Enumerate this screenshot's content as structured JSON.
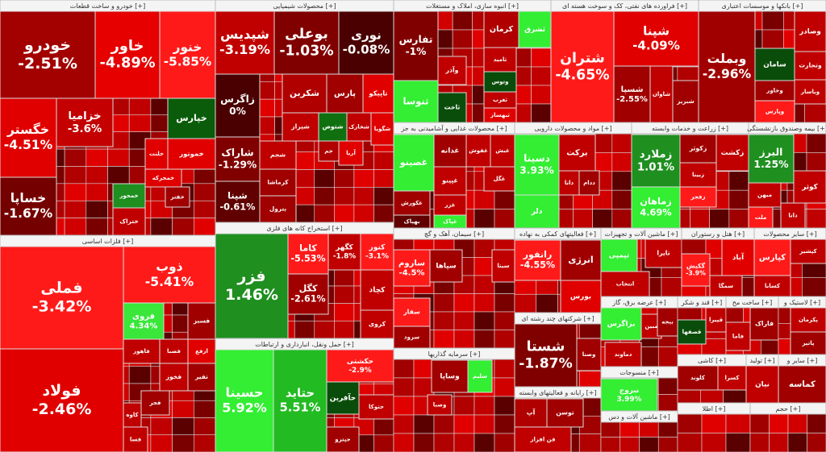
{
  "sectors": [
    {
      "title": "خودرو و ساخت قطعات [+]",
      "tiles": [
        {
          "name": "خودرو",
          "change": "-2.51%"
        },
        {
          "name": "خاور",
          "change": "-4.89%"
        },
        {
          "name": "خنور",
          "change": "-5.85%"
        },
        {
          "name": "خگستر",
          "change": "-4.51%"
        },
        {
          "name": "خساپا",
          "change": "-1.67%"
        },
        {
          "name": "خزامیا",
          "change": "-3.6%"
        },
        {
          "name": "خپارس"
        },
        {
          "name": "خموتور"
        },
        {
          "name": "خلنت"
        },
        {
          "name": "خمحرکه"
        },
        {
          "name": "خمحور"
        },
        {
          "name": "ختراک"
        },
        {
          "name": "خفنر"
        }
      ]
    },
    {
      "title": "فلزات اساسی [+]",
      "tiles": [
        {
          "name": "فملی",
          "change": "-3.42%"
        },
        {
          "name": "فولاد",
          "change": "-2.46%"
        },
        {
          "name": "ذوب",
          "change": "-5.41%"
        },
        {
          "name": "فروی",
          "change": "4.34%"
        },
        {
          "name": "فسبز"
        },
        {
          "name": "فاهور"
        },
        {
          "name": "فصبا"
        },
        {
          "name": "ارفع"
        },
        {
          "name": "فخوز"
        },
        {
          "name": "تفیر"
        },
        {
          "name": "فجر"
        },
        {
          "name": "کاوه"
        },
        {
          "name": "فسا"
        }
      ]
    },
    {
      "title": "محصولات شیمیایی [+]",
      "tiles": [
        {
          "name": "شپدیس",
          "change": "-3.19%"
        },
        {
          "name": "بوعلی",
          "change": "-1.03%"
        },
        {
          "name": "نوری",
          "change": "-0.08%"
        },
        {
          "name": "زاگرس",
          "change": "0%"
        },
        {
          "name": "شکربن"
        },
        {
          "name": "پارس"
        },
        {
          "name": "تاپیکو"
        },
        {
          "name": "شیراز"
        },
        {
          "name": "شتوص"
        },
        {
          "name": "شخارک"
        },
        {
          "name": "شگویا"
        },
        {
          "name": "شاراک",
          "change": "-1.29%"
        },
        {
          "name": "شپنا",
          "change": "-0.61%"
        },
        {
          "name": "شجم"
        },
        {
          "name": "کرماشا"
        },
        {
          "name": "بترول"
        },
        {
          "name": "آریا"
        },
        {
          "name": "جم"
        }
      ]
    },
    {
      "title": "استخراج کانه های فلزی [+]",
      "tiles": [
        {
          "name": "فزر",
          "change": "1.46%"
        },
        {
          "name": "کاما",
          "change": "-5.53%"
        },
        {
          "name": "کگهر",
          "change": "-1.8%"
        },
        {
          "name": "کنور",
          "change": "-3.1%"
        },
        {
          "name": "کچاد"
        },
        {
          "name": "کگل",
          "change": "-2.61%"
        },
        {
          "name": "کروی"
        }
      ]
    },
    {
      "title": "حمل ونقل، انبارداری و ارتباطات [+]",
      "tiles": [
        {
          "name": "حسینا",
          "change": "5.92%"
        },
        {
          "name": "حتاید",
          "change": "5.51%"
        },
        {
          "name": "حکشتی",
          "change": "-2.9%"
        },
        {
          "name": "حآفرین"
        },
        {
          "name": "حتوکا"
        },
        {
          "name": "حپترو"
        }
      ]
    },
    {
      "title": "انبوه سازی، املاک و مستغلات [+]",
      "tiles": [
        {
          "name": "تفارس",
          "change": "-1%"
        },
        {
          "name": "کرمان"
        },
        {
          "name": "ثشرق"
        },
        {
          "name": "ثامید"
        },
        {
          "name": "وآذر"
        },
        {
          "name": "ثاخت"
        },
        {
          "name": "وتوس"
        },
        {
          "name": "ثغرب"
        },
        {
          "name": "ثبهساز"
        },
        {
          "name": "ثنوسا"
        }
      ]
    },
    {
      "title": "فراورده های نفتی، کک و سوخت هسته ای [+]",
      "tiles": [
        {
          "name": "شتران",
          "change": "-4.65%"
        },
        {
          "name": "شپنا",
          "change": "-4.09%"
        },
        {
          "name": "شسپا",
          "change": "-2.55%"
        },
        {
          "name": "شاوان"
        },
        {
          "name": "شبریز"
        }
      ]
    },
    {
      "title": "بانکها و موسسات اعتباری [+]",
      "tiles": [
        {
          "name": "وبملت",
          "change": "-2.96%"
        },
        {
          "name": "وصادر"
        },
        {
          "name": "وتجارت"
        },
        {
          "name": "سامان"
        },
        {
          "name": "وخاور"
        },
        {
          "name": "وپارس"
        },
        {
          "name": "ویاسار"
        }
      ]
    },
    {
      "title": "محصولات غذایی و آشامیدنی به جز [+]",
      "tiles": [
        {
          "name": "غصینو"
        },
        {
          "name": "غکورش"
        },
        {
          "name": "بهپاک"
        },
        {
          "name": "غدانه"
        },
        {
          "name": "غفوش"
        },
        {
          "name": "غبش"
        },
        {
          "name": "غپینو"
        },
        {
          "name": "غگل"
        },
        {
          "name": "غزر"
        },
        {
          "name": "غپاک"
        }
      ]
    },
    {
      "title": "مواد و محصولات دارویی [+]",
      "tiles": [
        {
          "name": "دسینا",
          "change": "3.93%"
        },
        {
          "name": "دلر"
        },
        {
          "name": "برکت"
        },
        {
          "name": "دانا"
        },
        {
          "name": "ددام"
        }
      ]
    },
    {
      "title": "زراعت و خدمات وابسته [+]",
      "tiles": [
        {
          "name": "زملارد",
          "change": "1.01%"
        },
        {
          "name": "زماهان",
          "change": "4.69%"
        },
        {
          "name": "زکوثر"
        },
        {
          "name": "زکشت"
        },
        {
          "name": "زبینا"
        },
        {
          "name": "زفجر"
        }
      ]
    },
    {
      "title": "بیمه وصندوق بازنشستگی [+]",
      "tiles": [
        {
          "name": "البرز",
          "change": "1.25%"
        },
        {
          "name": "کوثر"
        },
        {
          "name": "میهن"
        },
        {
          "name": "ملت"
        },
        {
          "name": "دانا"
        }
      ]
    },
    {
      "title": "سیمان، آهک و گچ [+]",
      "tiles": [
        {
          "name": "ساروم",
          "change": "-4.5%"
        },
        {
          "name": "سپاها"
        },
        {
          "name": "سیتا"
        },
        {
          "name": "سفار"
        },
        {
          "name": "سرود"
        }
      ]
    },
    {
      "title": "سرمایه گذاریها [+]",
      "tiles": [
        {
          "name": "سلیم"
        },
        {
          "name": "وساپا"
        },
        {
          "name": "وصبا"
        }
      ]
    },
    {
      "title": "فعالیتهای کمکی به نهاده [+]",
      "tiles": [
        {
          "name": "رانفور",
          "change": "-4.55%"
        },
        {
          "name": "انرژی"
        },
        {
          "name": "بورس"
        }
      ]
    },
    {
      "title": "شرکتهای چند رشته ای [+]",
      "tiles": [
        {
          "name": "شستا",
          "change": "-1.87%"
        },
        {
          "name": "وصنا"
        }
      ]
    },
    {
      "title": "رایانه و فعالیتهای وابسته [+]",
      "tiles": [
        {
          "name": "آپ"
        },
        {
          "name": "توسن"
        },
        {
          "name": "فن افزار"
        }
      ]
    },
    {
      "title": "ماشین آلات و تجهیزات [+]",
      "tiles": [
        {
          "name": "تپمپی"
        },
        {
          "name": "تایرا"
        },
        {
          "name": "انتخاب"
        }
      ]
    },
    {
      "title": "عرضه برق، گاز [+]",
      "tiles": [
        {
          "name": "بزاگرس"
        },
        {
          "name": "مبین"
        },
        {
          "name": "بیجه"
        },
        {
          "name": "دماوند"
        }
      ]
    },
    {
      "title": "منسوجات [+]",
      "tiles": [
        {
          "name": "نبروج",
          "change": "3.99%"
        }
      ]
    },
    {
      "title": "ماشین آلات و دس [+]",
      "tiles": []
    },
    {
      "title": "هتل و رستوران [+]",
      "tiles": [
        {
          "name": "آباد"
        },
        {
          "name": "سمگا"
        },
        {
          "name": "گکیش",
          "change": "-3.9%"
        }
      ]
    },
    {
      "title": "سایر محصولات [+]",
      "tiles": [
        {
          "name": "کپارس"
        },
        {
          "name": "کسابا"
        },
        {
          "name": "کپشیر"
        }
      ]
    },
    {
      "title": "قند و شکر [+]",
      "tiles": [
        {
          "name": "قصفها"
        },
        {
          "name": "قپیرا"
        }
      ]
    },
    {
      "title": "ساخت مح [+]",
      "tiles": [
        {
          "name": "فاراک"
        },
        {
          "name": "فاما"
        }
      ]
    },
    {
      "title": "لاستیک و [+]",
      "tiles": [
        {
          "name": "پکرمان"
        },
        {
          "name": "پاتیر"
        }
      ]
    },
    {
      "title": "کاشی [+]",
      "tiles": [
        {
          "name": "کلوند"
        },
        {
          "name": "کسرا"
        }
      ]
    },
    {
      "title": "تولید [+]",
      "tiles": [
        {
          "name": "نیان"
        }
      ]
    },
    {
      "title": "سایر و [+]",
      "tiles": [
        {
          "name": "کماسه"
        }
      ]
    },
    {
      "title": "اطلا [+]",
      "tiles": []
    },
    {
      "title": "حجم [+]",
      "tiles": []
    }
  ]
}
